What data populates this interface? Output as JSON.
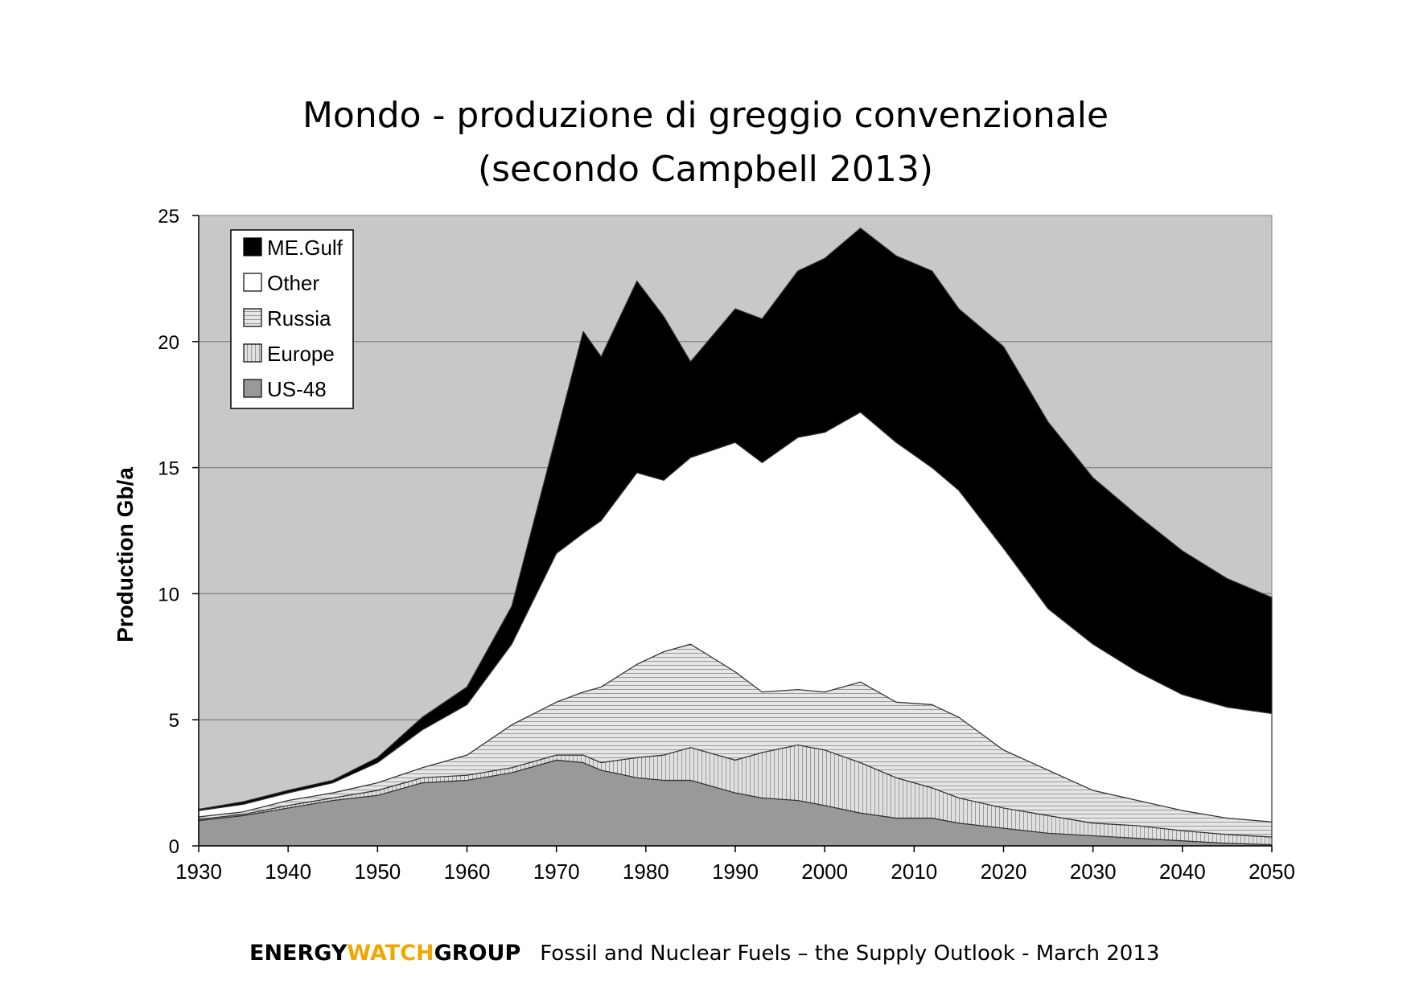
{
  "title_line1": "Mondo - produzione di greggio convenzionale",
  "title_line2": "(secondo Campbell 2013)",
  "footer": {
    "brand_part1": "ENERGY",
    "brand_part2": "WATCH",
    "brand_part3": "GROUP",
    "brand_accent_color": "#f0a800",
    "text": "Fossil and Nuclear Fuels – the Supply Outlook - March 2013"
  },
  "chart_data": {
    "type": "area",
    "stacked": true,
    "ylabel": "Production Gb/a",
    "xlim": [
      1930,
      2050
    ],
    "ylim": [
      0,
      25
    ],
    "xticks": [
      1930,
      1940,
      1950,
      1960,
      1970,
      1980,
      1990,
      2000,
      2010,
      2020,
      2030,
      2040,
      2050
    ],
    "yticks": [
      0,
      5,
      10,
      15,
      20,
      25
    ],
    "grid": "horizontal",
    "legend_position": "top-left",
    "background_color": "#c8c8c8",
    "x": [
      1930,
      1935,
      1940,
      1945,
      1950,
      1955,
      1960,
      1965,
      1970,
      1973,
      1975,
      1979,
      1982,
      1985,
      1990,
      1993,
      1997,
      2000,
      2004,
      2008,
      2012,
      2015,
      2020,
      2025,
      2030,
      2035,
      2040,
      2045,
      2050
    ],
    "series": [
      {
        "name": "US-48",
        "color": "#999999",
        "values": [
          1.0,
          1.2,
          1.5,
          1.8,
          2.0,
          2.5,
          2.6,
          2.9,
          3.4,
          3.3,
          3.0,
          2.7,
          2.6,
          2.6,
          2.1,
          1.9,
          1.8,
          1.6,
          1.3,
          1.1,
          1.1,
          0.9,
          0.7,
          0.5,
          0.4,
          0.3,
          0.2,
          0.1,
          0.05
        ]
      },
      {
        "name": "Europe",
        "color": "#d2d2d2",
        "values": [
          0.05,
          0.05,
          0.1,
          0.1,
          0.2,
          0.2,
          0.2,
          0.2,
          0.2,
          0.3,
          0.3,
          0.8,
          1.0,
          1.3,
          1.3,
          1.8,
          2.2,
          2.2,
          2.0,
          1.6,
          1.2,
          1.0,
          0.8,
          0.7,
          0.5,
          0.5,
          0.4,
          0.35,
          0.3
        ]
      },
      {
        "name": "Russia",
        "color": "#dcdcdc",
        "values": [
          0.1,
          0.1,
          0.2,
          0.2,
          0.3,
          0.4,
          0.8,
          1.7,
          2.1,
          2.5,
          3.0,
          3.7,
          4.1,
          4.1,
          3.5,
          2.4,
          2.2,
          2.3,
          3.2,
          3.0,
          3.3,
          3.2,
          2.3,
          1.8,
          1.3,
          1.0,
          0.8,
          0.65,
          0.6
        ]
      },
      {
        "name": "Other",
        "color": "#ffffff",
        "values": [
          0.25,
          0.3,
          0.3,
          0.4,
          0.8,
          1.5,
          2.0,
          3.2,
          5.9,
          6.3,
          6.6,
          7.6,
          6.8,
          7.4,
          9.1,
          9.1,
          10.0,
          10.3,
          10.7,
          10.3,
          9.4,
          9.0,
          8.0,
          6.4,
          5.8,
          5.1,
          4.6,
          4.4,
          4.3
        ]
      },
      {
        "name": "ME.Gulf",
        "color": "#000000",
        "values": [
          0.05,
          0.1,
          0.1,
          0.1,
          0.2,
          0.5,
          0.7,
          1.5,
          4.7,
          8.0,
          6.5,
          7.6,
          6.5,
          3.8,
          5.3,
          5.7,
          6.6,
          6.9,
          7.3,
          7.4,
          7.8,
          7.2,
          8.0,
          7.4,
          6.6,
          6.2,
          5.7,
          5.1,
          4.6
        ]
      }
    ]
  }
}
